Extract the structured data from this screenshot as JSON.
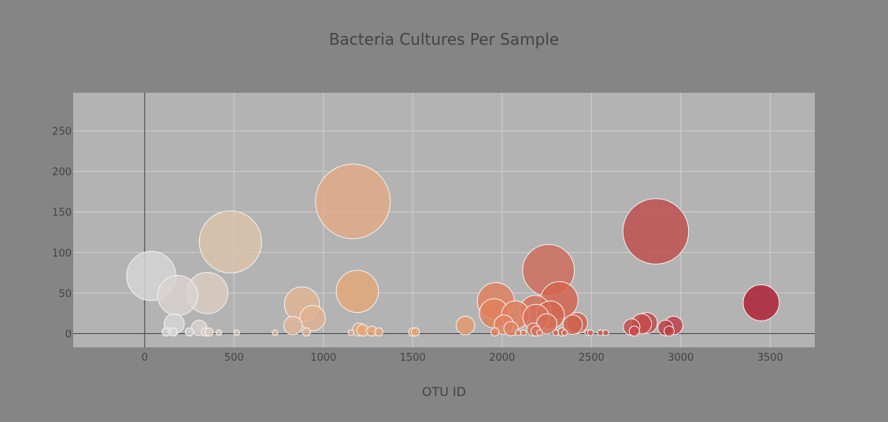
{
  "chart_data": {
    "type": "scatter",
    "title": "Bacteria Cultures Per Sample",
    "xlabel": "OTU ID",
    "ylabel": "",
    "xlim": [
      -400,
      3750
    ],
    "ylim": [
      -17,
      297
    ],
    "xticks": [
      0,
      500,
      1000,
      1500,
      2000,
      2500,
      3000,
      3500
    ],
    "yticks": [
      0,
      50,
      100,
      150,
      200,
      250
    ],
    "grid": true,
    "legend": "none",
    "marker_size_encodes": "y value",
    "colors": {
      "background": "#858585",
      "plot_area": "#b3b3b3",
      "grid": "#cfcfcf",
      "zero_line": "#444444",
      "text": "#444444",
      "colorscale_start": "#d9d9d9",
      "colorscale_mid": "#e8a070",
      "colorscale_end": "#b01c30"
    },
    "points": [
      {
        "x": 37,
        "y": 71,
        "color": "#d7d7d7"
      },
      {
        "x": 185,
        "y": 47,
        "color": "#d9d3cf"
      },
      {
        "x": 350,
        "y": 50,
        "color": "#dcccbf"
      },
      {
        "x": 480,
        "y": 113,
        "color": "#ddc3ab"
      },
      {
        "x": 165,
        "y": 12,
        "color": "#d7d7d7"
      },
      {
        "x": 305,
        "y": 7,
        "color": "#d9d3cf"
      },
      {
        "x": 1165,
        "y": 163,
        "color": "#e3ab85"
      },
      {
        "x": 880,
        "y": 36,
        "color": "#e0b594"
      },
      {
        "x": 940,
        "y": 19,
        "color": "#e0b290"
      },
      {
        "x": 830,
        "y": 10,
        "color": "#e0b698"
      },
      {
        "x": 1190,
        "y": 52,
        "color": "#e5a878"
      },
      {
        "x": 1795,
        "y": 10,
        "color": "#e59a6a"
      },
      {
        "x": 1965,
        "y": 40,
        "color": "#e2805c"
      },
      {
        "x": 1955,
        "y": 25,
        "color": "#e2805c"
      },
      {
        "x": 2010,
        "y": 11,
        "color": "#e08060"
      },
      {
        "x": 2075,
        "y": 23,
        "color": "#df7c5c"
      },
      {
        "x": 2185,
        "y": 28,
        "color": "#d8705a"
      },
      {
        "x": 2190,
        "y": 20,
        "color": "#d8705a"
      },
      {
        "x": 2250,
        "y": 12,
        "color": "#d66c56"
      },
      {
        "x": 2260,
        "y": 78,
        "color": "#d06b5c"
      },
      {
        "x": 2320,
        "y": 41,
        "color": "#d4634c"
      },
      {
        "x": 2270,
        "y": 23,
        "color": "#d4684f"
      },
      {
        "x": 2420,
        "y": 13,
        "color": "#d0604c"
      },
      {
        "x": 2395,
        "y": 11,
        "color": "#d0604c"
      },
      {
        "x": 2725,
        "y": 8,
        "color": "#c44a4a"
      },
      {
        "x": 2780,
        "y": 12,
        "color": "#c44a4a"
      },
      {
        "x": 2810,
        "y": 13,
        "color": "#c04848"
      },
      {
        "x": 2860,
        "y": 126,
        "color": "#c04d4d"
      },
      {
        "x": 2915,
        "y": 7,
        "color": "#bd3e45"
      },
      {
        "x": 2960,
        "y": 10,
        "color": "#bd3e45"
      },
      {
        "x": 3450,
        "y": 38,
        "color": "#b01c30"
      },
      {
        "x": 2050,
        "y": 6,
        "color": "#e08060"
      },
      {
        "x": 1200,
        "y": 5,
        "color": "#e5a878"
      },
      {
        "x": 1220,
        "y": 4,
        "color": "#e5a878"
      },
      {
        "x": 2175,
        "y": 5,
        "color": "#d8705a"
      },
      {
        "x": 2190,
        "y": 3,
        "color": "#d8705a"
      },
      {
        "x": 2740,
        "y": 3,
        "color": "#c44a4a"
      },
      {
        "x": 2935,
        "y": 3,
        "color": "#bd3e45"
      },
      {
        "x": 1270,
        "y": 3,
        "color": "#e5a878"
      },
      {
        "x": 1310,
        "y": 2,
        "color": "#e5a878"
      },
      {
        "x": 120,
        "y": 2,
        "color": "#d7d7d7"
      },
      {
        "x": 160,
        "y": 2,
        "color": "#d7d7d7"
      },
      {
        "x": 250,
        "y": 2,
        "color": "#d9d3cf"
      },
      {
        "x": 340,
        "y": 2,
        "color": "#dcccbf"
      },
      {
        "x": 360,
        "y": 2,
        "color": "#dcccbf"
      },
      {
        "x": 415,
        "y": 1,
        "color": "#dcccbf"
      },
      {
        "x": 515,
        "y": 1,
        "color": "#ddc3ab"
      },
      {
        "x": 730,
        "y": 1,
        "color": "#e0b698"
      },
      {
        "x": 905,
        "y": 2,
        "color": "#e0b290"
      },
      {
        "x": 1155,
        "y": 1,
        "color": "#e3ab85"
      },
      {
        "x": 1500,
        "y": 2,
        "color": "#e5a070"
      },
      {
        "x": 1515,
        "y": 2,
        "color": "#e5a070"
      },
      {
        "x": 1960,
        "y": 2,
        "color": "#e2805c"
      },
      {
        "x": 2090,
        "y": 1,
        "color": "#df7c5c"
      },
      {
        "x": 2120,
        "y": 1,
        "color": "#df7c5c"
      },
      {
        "x": 2210,
        "y": 1,
        "color": "#d8705a"
      },
      {
        "x": 2300,
        "y": 1,
        "color": "#d4684f"
      },
      {
        "x": 2335,
        "y": 2,
        "color": "#d4684f"
      },
      {
        "x": 2350,
        "y": 1,
        "color": "#d4684f"
      },
      {
        "x": 2480,
        "y": 1,
        "color": "#cc5a4c"
      },
      {
        "x": 2495,
        "y": 1,
        "color": "#cc5a4c"
      },
      {
        "x": 2550,
        "y": 1,
        "color": "#cc5a4c"
      },
      {
        "x": 2580,
        "y": 1,
        "color": "#cc5a4c"
      }
    ]
  }
}
